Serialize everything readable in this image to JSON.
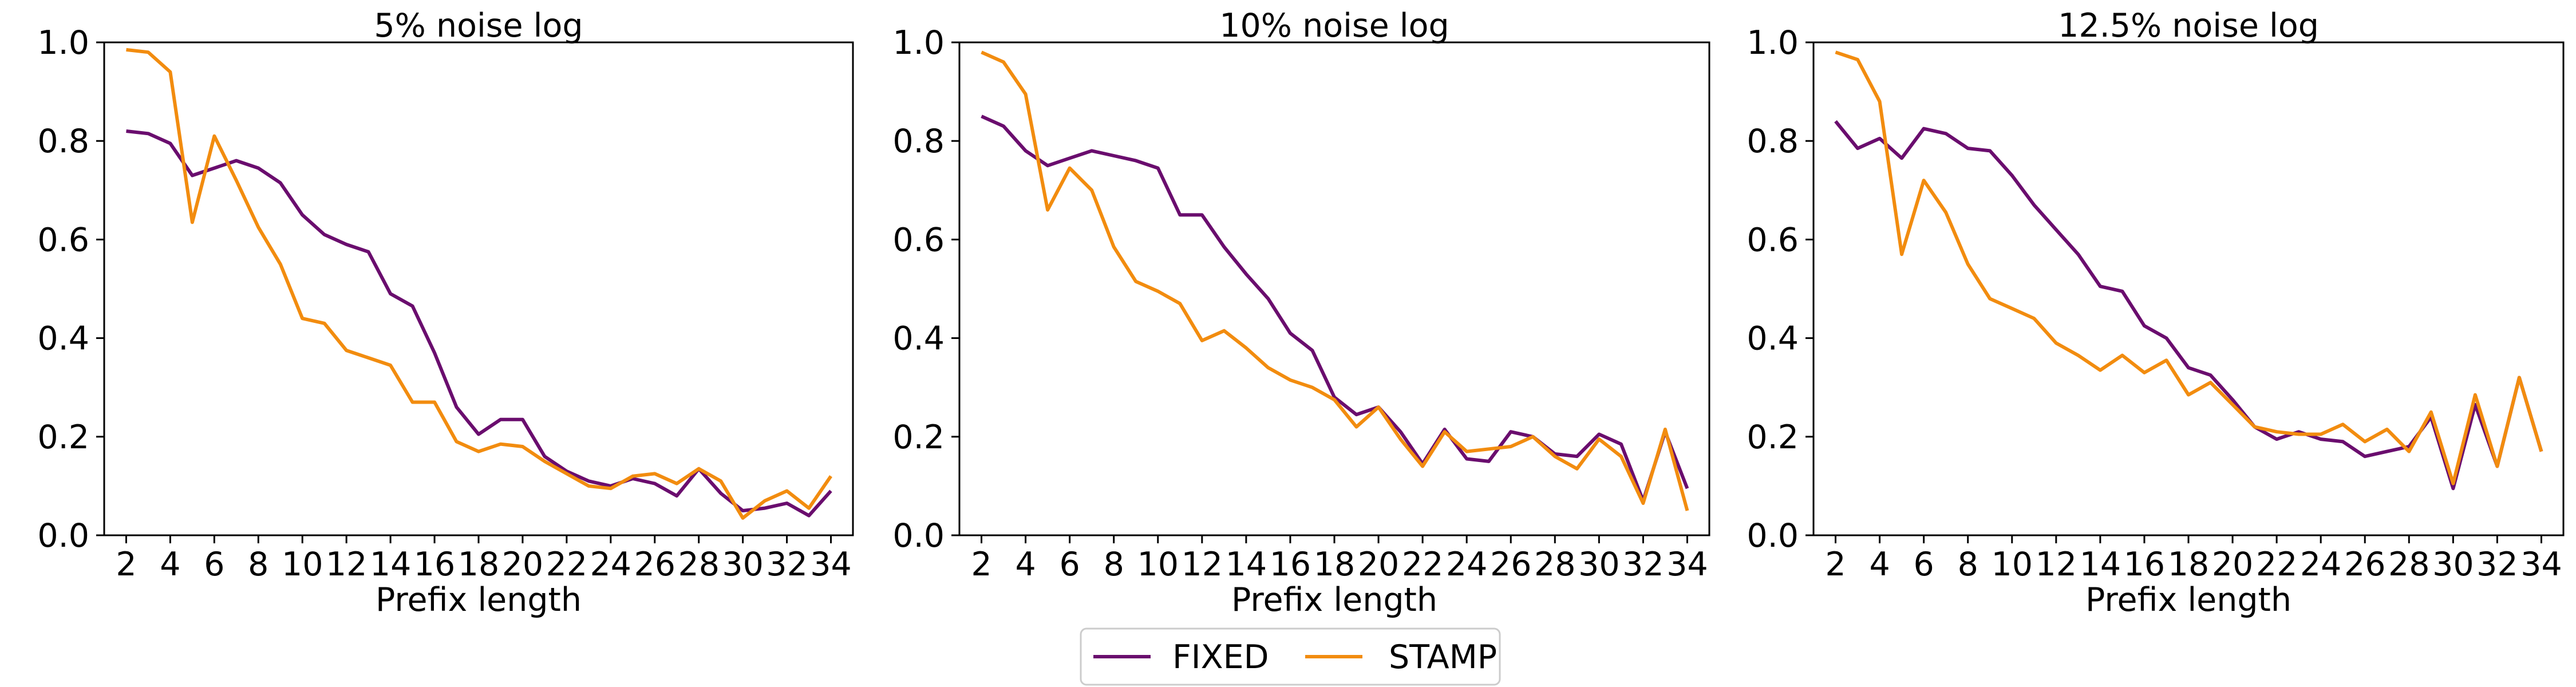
{
  "colors": {
    "FIXED": "#6a0d6e",
    "STAMP": "#f28c0f"
  },
  "legend": {
    "placement": "bottom-center",
    "entries": [
      "FIXED",
      "STAMP"
    ]
  },
  "chart_data": [
    {
      "type": "line",
      "title": "5% noise log",
      "xlabel": "Prefix length",
      "ylabel": "",
      "xlim": [
        1.0,
        35.0
      ],
      "ylim": [
        0.0,
        1.0
      ],
      "xticks": [
        2,
        4,
        6,
        8,
        10,
        12,
        14,
        16,
        18,
        20,
        22,
        24,
        26,
        28,
        30,
        32,
        34
      ],
      "yticks": [
        0.0,
        0.2,
        0.4,
        0.6,
        0.8,
        1.0
      ],
      "grid": false,
      "x": [
        2,
        3,
        4,
        5,
        6,
        7,
        8,
        9,
        10,
        11,
        12,
        13,
        14,
        15,
        16,
        17,
        18,
        19,
        20,
        21,
        22,
        23,
        24,
        25,
        26,
        27,
        28,
        29,
        30,
        31,
        32,
        33,
        34
      ],
      "series": [
        {
          "name": "FIXED",
          "values": [
            0.82,
            0.815,
            0.795,
            0.73,
            0.745,
            0.76,
            0.745,
            0.715,
            0.65,
            0.61,
            0.59,
            0.575,
            0.49,
            0.465,
            0.37,
            0.26,
            0.205,
            0.235,
            0.235,
            0.16,
            0.13,
            0.11,
            0.1,
            0.115,
            0.105,
            0.08,
            0.135,
            0.085,
            0.05,
            0.055,
            0.065,
            0.04,
            0.09
          ]
        },
        {
          "name": "STAMP",
          "values": [
            0.985,
            0.98,
            0.94,
            0.635,
            0.81,
            0.72,
            0.625,
            0.55,
            0.44,
            0.43,
            0.375,
            0.36,
            0.345,
            0.27,
            0.27,
            0.19,
            0.17,
            0.185,
            0.18,
            0.15,
            0.125,
            0.1,
            0.095,
            0.12,
            0.125,
            0.105,
            0.135,
            0.11,
            0.035,
            0.07,
            0.09,
            0.055,
            0.12
          ]
        }
      ]
    },
    {
      "type": "line",
      "title": "10% noise log",
      "xlabel": "Prefix length",
      "ylabel": "",
      "xlim": [
        1.0,
        35.0
      ],
      "ylim": [
        0.0,
        1.0
      ],
      "xticks": [
        2,
        4,
        6,
        8,
        10,
        12,
        14,
        16,
        18,
        20,
        22,
        24,
        26,
        28,
        30,
        32,
        34
      ],
      "yticks": [
        0.0,
        0.2,
        0.4,
        0.6,
        0.8,
        1.0
      ],
      "grid": false,
      "x": [
        2,
        3,
        4,
        5,
        6,
        7,
        8,
        9,
        10,
        11,
        12,
        13,
        14,
        15,
        16,
        17,
        18,
        19,
        20,
        21,
        22,
        23,
        24,
        25,
        26,
        27,
        28,
        29,
        30,
        31,
        32,
        33,
        34
      ],
      "series": [
        {
          "name": "FIXED",
          "values": [
            0.85,
            0.83,
            0.78,
            0.75,
            0.765,
            0.78,
            0.77,
            0.76,
            0.745,
            0.65,
            0.65,
            0.585,
            0.53,
            0.48,
            0.41,
            0.375,
            0.28,
            0.245,
            0.26,
            0.21,
            0.145,
            0.215,
            0.155,
            0.15,
            0.21,
            0.2,
            0.165,
            0.16,
            0.205,
            0.185,
            0.07,
            0.21,
            0.095
          ]
        },
        {
          "name": "STAMP",
          "values": [
            0.98,
            0.96,
            0.895,
            0.66,
            0.745,
            0.7,
            0.585,
            0.515,
            0.495,
            0.47,
            0.395,
            0.415,
            0.38,
            0.34,
            0.315,
            0.3,
            0.275,
            0.22,
            0.26,
            0.195,
            0.14,
            0.21,
            0.17,
            0.175,
            0.18,
            0.2,
            0.16,
            0.135,
            0.195,
            0.16,
            0.065,
            0.215,
            0.05
          ]
        }
      ]
    },
    {
      "type": "line",
      "title": "12.5% noise log",
      "xlabel": "Prefix length",
      "ylabel": "",
      "xlim": [
        1.0,
        35.0
      ],
      "ylim": [
        0.0,
        1.0
      ],
      "xticks": [
        2,
        4,
        6,
        8,
        10,
        12,
        14,
        16,
        18,
        20,
        22,
        24,
        26,
        28,
        30,
        32,
        34
      ],
      "yticks": [
        0.0,
        0.2,
        0.4,
        0.6,
        0.8,
        1.0
      ],
      "grid": false,
      "x": [
        2,
        3,
        4,
        5,
        6,
        7,
        8,
        9,
        10,
        11,
        12,
        13,
        14,
        15,
        16,
        17,
        18,
        19,
        20,
        21,
        22,
        23,
        24,
        25,
        26,
        27,
        28,
        29,
        30,
        31,
        32,
        33,
        34
      ],
      "series": [
        {
          "name": "FIXED",
          "values": [
            0.84,
            0.785,
            0.805,
            0.765,
            0.825,
            0.815,
            0.785,
            0.78,
            0.73,
            0.67,
            0.62,
            0.57,
            0.505,
            0.495,
            0.425,
            0.4,
            0.34,
            0.325,
            0.275,
            0.22,
            0.195,
            0.21,
            0.195,
            0.19,
            0.16,
            0.17,
            0.18,
            0.24,
            0.095,
            0.265,
            0.14,
            0.32,
            0.17
          ]
        },
        {
          "name": "STAMP",
          "values": [
            0.98,
            0.965,
            0.88,
            0.57,
            0.72,
            0.655,
            0.55,
            0.48,
            0.46,
            0.44,
            0.39,
            0.365,
            0.335,
            0.365,
            0.33,
            0.355,
            0.285,
            0.31,
            0.265,
            0.22,
            0.21,
            0.205,
            0.205,
            0.225,
            0.19,
            0.215,
            0.17,
            0.25,
            0.105,
            0.285,
            0.14,
            0.32,
            0.17
          ]
        }
      ]
    }
  ]
}
